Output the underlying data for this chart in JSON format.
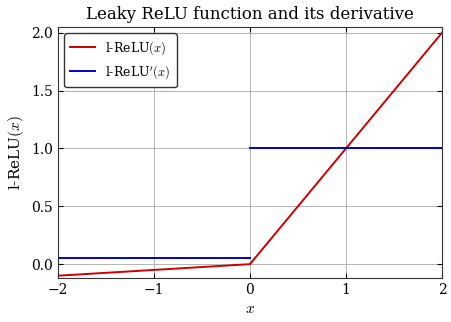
{
  "title": "Leaky ReLU function and its derivative",
  "xlabel": "$x$",
  "ylabel": "l-ReLU$(x)$",
  "xlim": [
    -2,
    2
  ],
  "ylim": [
    -0.12,
    2.05
  ],
  "xticks": [
    -2,
    -1,
    0,
    1,
    2
  ],
  "yticks": [
    0,
    0.5,
    1,
    1.5,
    2
  ],
  "leaky_alpha": 0.05,
  "line_color_relu": "#cc0000",
  "line_color_deriv": "#0000cc",
  "line_width": 1.4,
  "legend_label_relu": "l-ReLU$(x)$",
  "legend_label_deriv": "l-ReLU$'(x)$",
  "grid_color": "#aaaaaa",
  "background_color": "#ffffff",
  "title_fontsize": 12,
  "label_fontsize": 11,
  "tick_fontsize": 10
}
